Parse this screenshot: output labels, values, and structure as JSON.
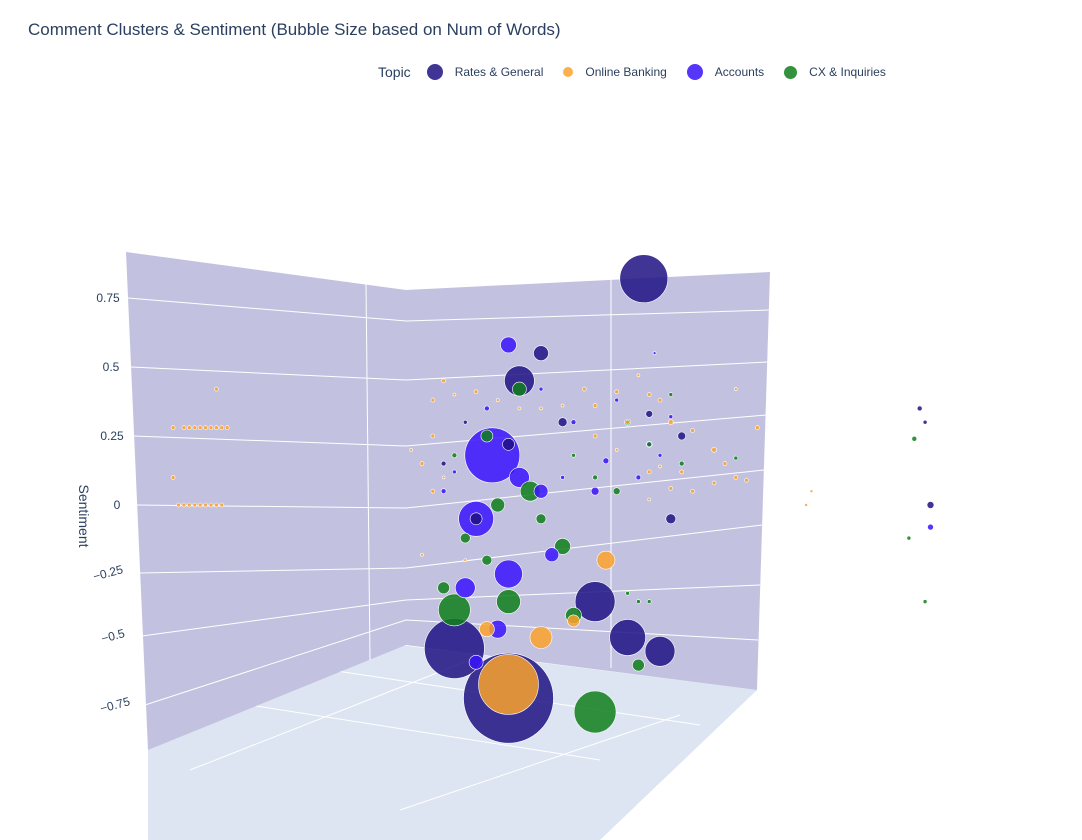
{
  "chart_data": {
    "type": "scatter",
    "title": "Comment Clusters & Sentiment (Bubble Size based on Num of Words)",
    "legend_title": "Topic",
    "zlabel": "Sentiment",
    "zticks": [
      "0.75",
      "0.5",
      "0.25",
      "0",
      "−0.25",
      "−0.5",
      "−0.75"
    ],
    "zlim": [
      -0.9,
      0.9
    ],
    "legend_position": "top",
    "grid": true,
    "series": [
      {
        "name": "Rates & General",
        "color": "#1f1282",
        "points": [
          {
            "u": 0.595,
            "z": 0.82,
            "w": 48
          },
          {
            "u": 0.48,
            "z": 0.45,
            "w": 30
          },
          {
            "u": 0.5,
            "z": 0.55,
            "w": 15
          },
          {
            "u": 0.47,
            "z": 0.22,
            "w": 12
          },
          {
            "u": 0.52,
            "z": 0.3,
            "w": 9
          },
          {
            "u": 0.6,
            "z": 0.33,
            "w": 7
          },
          {
            "u": 0.63,
            "z": 0.25,
            "w": 8
          },
          {
            "u": 0.62,
            "z": -0.05,
            "w": 10
          },
          {
            "u": 0.44,
            "z": -0.05,
            "w": 12
          },
          {
            "u": 0.55,
            "z": -0.35,
            "w": 40
          },
          {
            "u": 0.42,
            "z": -0.52,
            "w": 60
          },
          {
            "u": 0.47,
            "z": -0.7,
            "w": 90
          },
          {
            "u": 0.58,
            "z": -0.48,
            "w": 36
          },
          {
            "u": 0.61,
            "z": -0.53,
            "w": 30
          },
          {
            "u": 0.85,
            "z": 0.35,
            "w": 5
          },
          {
            "u": 0.855,
            "z": 0.3,
            "w": 4
          },
          {
            "u": 0.86,
            "z": 0.0,
            "w": 7
          },
          {
            "u": 0.43,
            "z": 0.3,
            "w": 4
          },
          {
            "u": 0.41,
            "z": 0.15,
            "w": 5
          }
        ]
      },
      {
        "name": "Online Banking",
        "color": "#fba22c",
        "points": [
          {
            "u": 0.47,
            "z": -0.65,
            "w": 60
          },
          {
            "u": 0.5,
            "z": -0.48,
            "w": 22
          },
          {
            "u": 0.56,
            "z": -0.2,
            "w": 18
          },
          {
            "u": 0.45,
            "z": -0.45,
            "w": 15
          },
          {
            "u": 0.53,
            "z": -0.42,
            "w": 12
          },
          {
            "u": 0.41,
            "z": 0.45,
            "w": 4
          },
          {
            "u": 0.4,
            "z": 0.38,
            "w": 4
          },
          {
            "u": 0.42,
            "z": 0.4,
            "w": 3
          },
          {
            "u": 0.44,
            "z": 0.41,
            "w": 4
          },
          {
            "u": 0.46,
            "z": 0.38,
            "w": 3
          },
          {
            "u": 0.54,
            "z": 0.42,
            "w": 4
          },
          {
            "u": 0.57,
            "z": 0.41,
            "w": 4
          },
          {
            "u": 0.6,
            "z": 0.4,
            "w": 4
          },
          {
            "u": 0.61,
            "z": 0.38,
            "w": 4
          },
          {
            "u": 0.59,
            "z": 0.47,
            "w": 3
          },
          {
            "u": 0.62,
            "z": 0.3,
            "w": 5
          },
          {
            "u": 0.64,
            "z": 0.27,
            "w": 4
          },
          {
            "u": 0.66,
            "z": 0.2,
            "w": 5
          },
          {
            "u": 0.67,
            "z": 0.15,
            "w": 4
          },
          {
            "u": 0.68,
            "z": 0.1,
            "w": 4
          },
          {
            "u": 0.66,
            "z": 0.08,
            "w": 4
          },
          {
            "u": 0.63,
            "z": 0.12,
            "w": 4
          },
          {
            "u": 0.64,
            "z": 0.05,
            "w": 4
          },
          {
            "u": 0.69,
            "z": 0.09,
            "w": 4
          },
          {
            "u": 0.7,
            "z": 0.28,
            "w": 4
          },
          {
            "u": 0.55,
            "z": 0.25,
            "w": 4
          },
          {
            "u": 0.58,
            "z": 0.3,
            "w": 4
          },
          {
            "u": 0.4,
            "z": 0.25,
            "w": 4
          },
          {
            "u": 0.38,
            "z": 0.2,
            "w": 3
          },
          {
            "u": 0.39,
            "z": 0.15,
            "w": 4
          },
          {
            "u": 0.41,
            "z": 0.1,
            "w": 3
          },
          {
            "u": 0.4,
            "z": 0.05,
            "w": 4
          },
          {
            "u": 0.39,
            "z": -0.18,
            "w": 3
          },
          {
            "u": 0.43,
            "z": -0.2,
            "w": 3
          },
          {
            "u": 0.6,
            "z": 0.02,
            "w": 3
          },
          {
            "u": 0.62,
            "z": 0.06,
            "w": 4
          },
          {
            "u": 0.61,
            "z": 0.14,
            "w": 3
          },
          {
            "u": 0.68,
            "z": 0.42,
            "w": 3
          },
          {
            "u": 0.6,
            "z": 0.12,
            "w": 4
          },
          {
            "u": 0.57,
            "z": 0.2,
            "w": 3
          },
          {
            "u": 0.52,
            "z": 0.36,
            "w": 3
          },
          {
            "u": 0.48,
            "z": 0.35,
            "w": 3
          },
          {
            "u": 0.5,
            "z": 0.35,
            "w": 3
          },
          {
            "u": 0.55,
            "z": 0.36,
            "w": 4
          },
          {
            "u": 0.2,
            "z": 0.42,
            "w": 4
          },
          {
            "u": 0.16,
            "z": 0.1,
            "w": 4
          },
          {
            "u": 0.16,
            "z": 0.28,
            "w": 4
          },
          {
            "u": 0.17,
            "z": 0.28,
            "w": 4
          },
          {
            "u": 0.175,
            "z": 0.28,
            "w": 4
          },
          {
            "u": 0.18,
            "z": 0.28,
            "w": 4
          },
          {
            "u": 0.185,
            "z": 0.28,
            "w": 4
          },
          {
            "u": 0.19,
            "z": 0.28,
            "w": 4
          },
          {
            "u": 0.195,
            "z": 0.28,
            "w": 4
          },
          {
            "u": 0.2,
            "z": 0.28,
            "w": 4
          },
          {
            "u": 0.205,
            "z": 0.28,
            "w": 4
          },
          {
            "u": 0.21,
            "z": 0.28,
            "w": 4
          },
          {
            "u": 0.165,
            "z": 0.0,
            "w": 4
          },
          {
            "u": 0.17,
            "z": 0.0,
            "w": 4
          },
          {
            "u": 0.175,
            "z": 0.0,
            "w": 4
          },
          {
            "u": 0.18,
            "z": 0.0,
            "w": 4
          },
          {
            "u": 0.185,
            "z": 0.0,
            "w": 4
          },
          {
            "u": 0.19,
            "z": 0.0,
            "w": 4
          },
          {
            "u": 0.195,
            "z": 0.0,
            "w": 4
          },
          {
            "u": 0.2,
            "z": 0.0,
            "w": 4
          },
          {
            "u": 0.205,
            "z": 0.0,
            "w": 4
          },
          {
            "u": 0.745,
            "z": 0.0,
            "w": 3
          },
          {
            "u": 0.75,
            "z": 0.05,
            "w": 3
          }
        ]
      },
      {
        "name": "Accounts",
        "color": "#3a13fb",
        "points": [
          {
            "u": 0.455,
            "z": 0.18,
            "w": 55
          },
          {
            "u": 0.44,
            "z": -0.05,
            "w": 35
          },
          {
            "u": 0.47,
            "z": -0.25,
            "w": 28
          },
          {
            "u": 0.46,
            "z": -0.45,
            "w": 18
          },
          {
            "u": 0.43,
            "z": -0.3,
            "w": 20
          },
          {
            "u": 0.47,
            "z": 0.58,
            "w": 16
          },
          {
            "u": 0.51,
            "z": -0.18,
            "w": 14
          },
          {
            "u": 0.48,
            "z": 0.1,
            "w": 20
          },
          {
            "u": 0.44,
            "z": -0.57,
            "w": 14
          },
          {
            "u": 0.5,
            "z": 0.05,
            "w": 14
          },
          {
            "u": 0.55,
            "z": 0.05,
            "w": 8
          },
          {
            "u": 0.56,
            "z": 0.16,
            "w": 6
          },
          {
            "u": 0.6,
            "z": 0.22,
            "w": 6
          },
          {
            "u": 0.53,
            "z": 0.3,
            "w": 5
          },
          {
            "u": 0.57,
            "z": 0.38,
            "w": 4
          },
          {
            "u": 0.41,
            "z": 0.05,
            "w": 5
          },
          {
            "u": 0.42,
            "z": 0.12,
            "w": 4
          },
          {
            "u": 0.59,
            "z": 0.1,
            "w": 5
          },
          {
            "u": 0.62,
            "z": 0.32,
            "w": 4
          },
          {
            "u": 0.61,
            "z": 0.18,
            "w": 4
          },
          {
            "u": 0.5,
            "z": 0.42,
            "w": 4
          },
          {
            "u": 0.52,
            "z": 0.1,
            "w": 4
          },
          {
            "u": 0.45,
            "z": 0.35,
            "w": 5
          },
          {
            "u": 0.605,
            "z": 0.55,
            "w": 3
          },
          {
            "u": 0.86,
            "z": -0.08,
            "w": 6
          }
        ]
      },
      {
        "name": "CX & Inquiries",
        "color": "#0f7f1b",
        "points": [
          {
            "u": 0.42,
            "z": -0.38,
            "w": 32
          },
          {
            "u": 0.47,
            "z": -0.35,
            "w": 24
          },
          {
            "u": 0.52,
            "z": -0.15,
            "w": 16
          },
          {
            "u": 0.55,
            "z": -0.75,
            "w": 42
          },
          {
            "u": 0.53,
            "z": -0.4,
            "w": 16
          },
          {
            "u": 0.49,
            "z": 0.05,
            "w": 20
          },
          {
            "u": 0.46,
            "z": 0.0,
            "w": 14
          },
          {
            "u": 0.45,
            "z": 0.25,
            "w": 12
          },
          {
            "u": 0.43,
            "z": -0.12,
            "w": 10
          },
          {
            "u": 0.59,
            "z": -0.58,
            "w": 12
          },
          {
            "u": 0.48,
            "z": 0.42,
            "w": 14
          },
          {
            "u": 0.41,
            "z": -0.3,
            "w": 12
          },
          {
            "u": 0.5,
            "z": -0.05,
            "w": 10
          },
          {
            "u": 0.45,
            "z": -0.2,
            "w": 10
          },
          {
            "u": 0.58,
            "z": 0.3,
            "w": 6
          },
          {
            "u": 0.57,
            "z": 0.05,
            "w": 7
          },
          {
            "u": 0.6,
            "z": 0.22,
            "w": 5
          },
          {
            "u": 0.62,
            "z": 0.4,
            "w": 4
          },
          {
            "u": 0.63,
            "z": 0.15,
            "w": 5
          },
          {
            "u": 0.55,
            "z": 0.1,
            "w": 5
          },
          {
            "u": 0.58,
            "z": -0.32,
            "w": 4
          },
          {
            "u": 0.59,
            "z": -0.35,
            "w": 4
          },
          {
            "u": 0.6,
            "z": -0.35,
            "w": 4
          },
          {
            "u": 0.42,
            "z": 0.18,
            "w": 5
          },
          {
            "u": 0.53,
            "z": 0.18,
            "w": 4
          },
          {
            "u": 0.68,
            "z": 0.17,
            "w": 4
          },
          {
            "u": 0.845,
            "z": 0.24,
            "w": 5
          },
          {
            "u": 0.84,
            "z": -0.12,
            "w": 4
          },
          {
            "u": 0.855,
            "z": -0.35,
            "w": 4
          }
        ]
      }
    ]
  }
}
